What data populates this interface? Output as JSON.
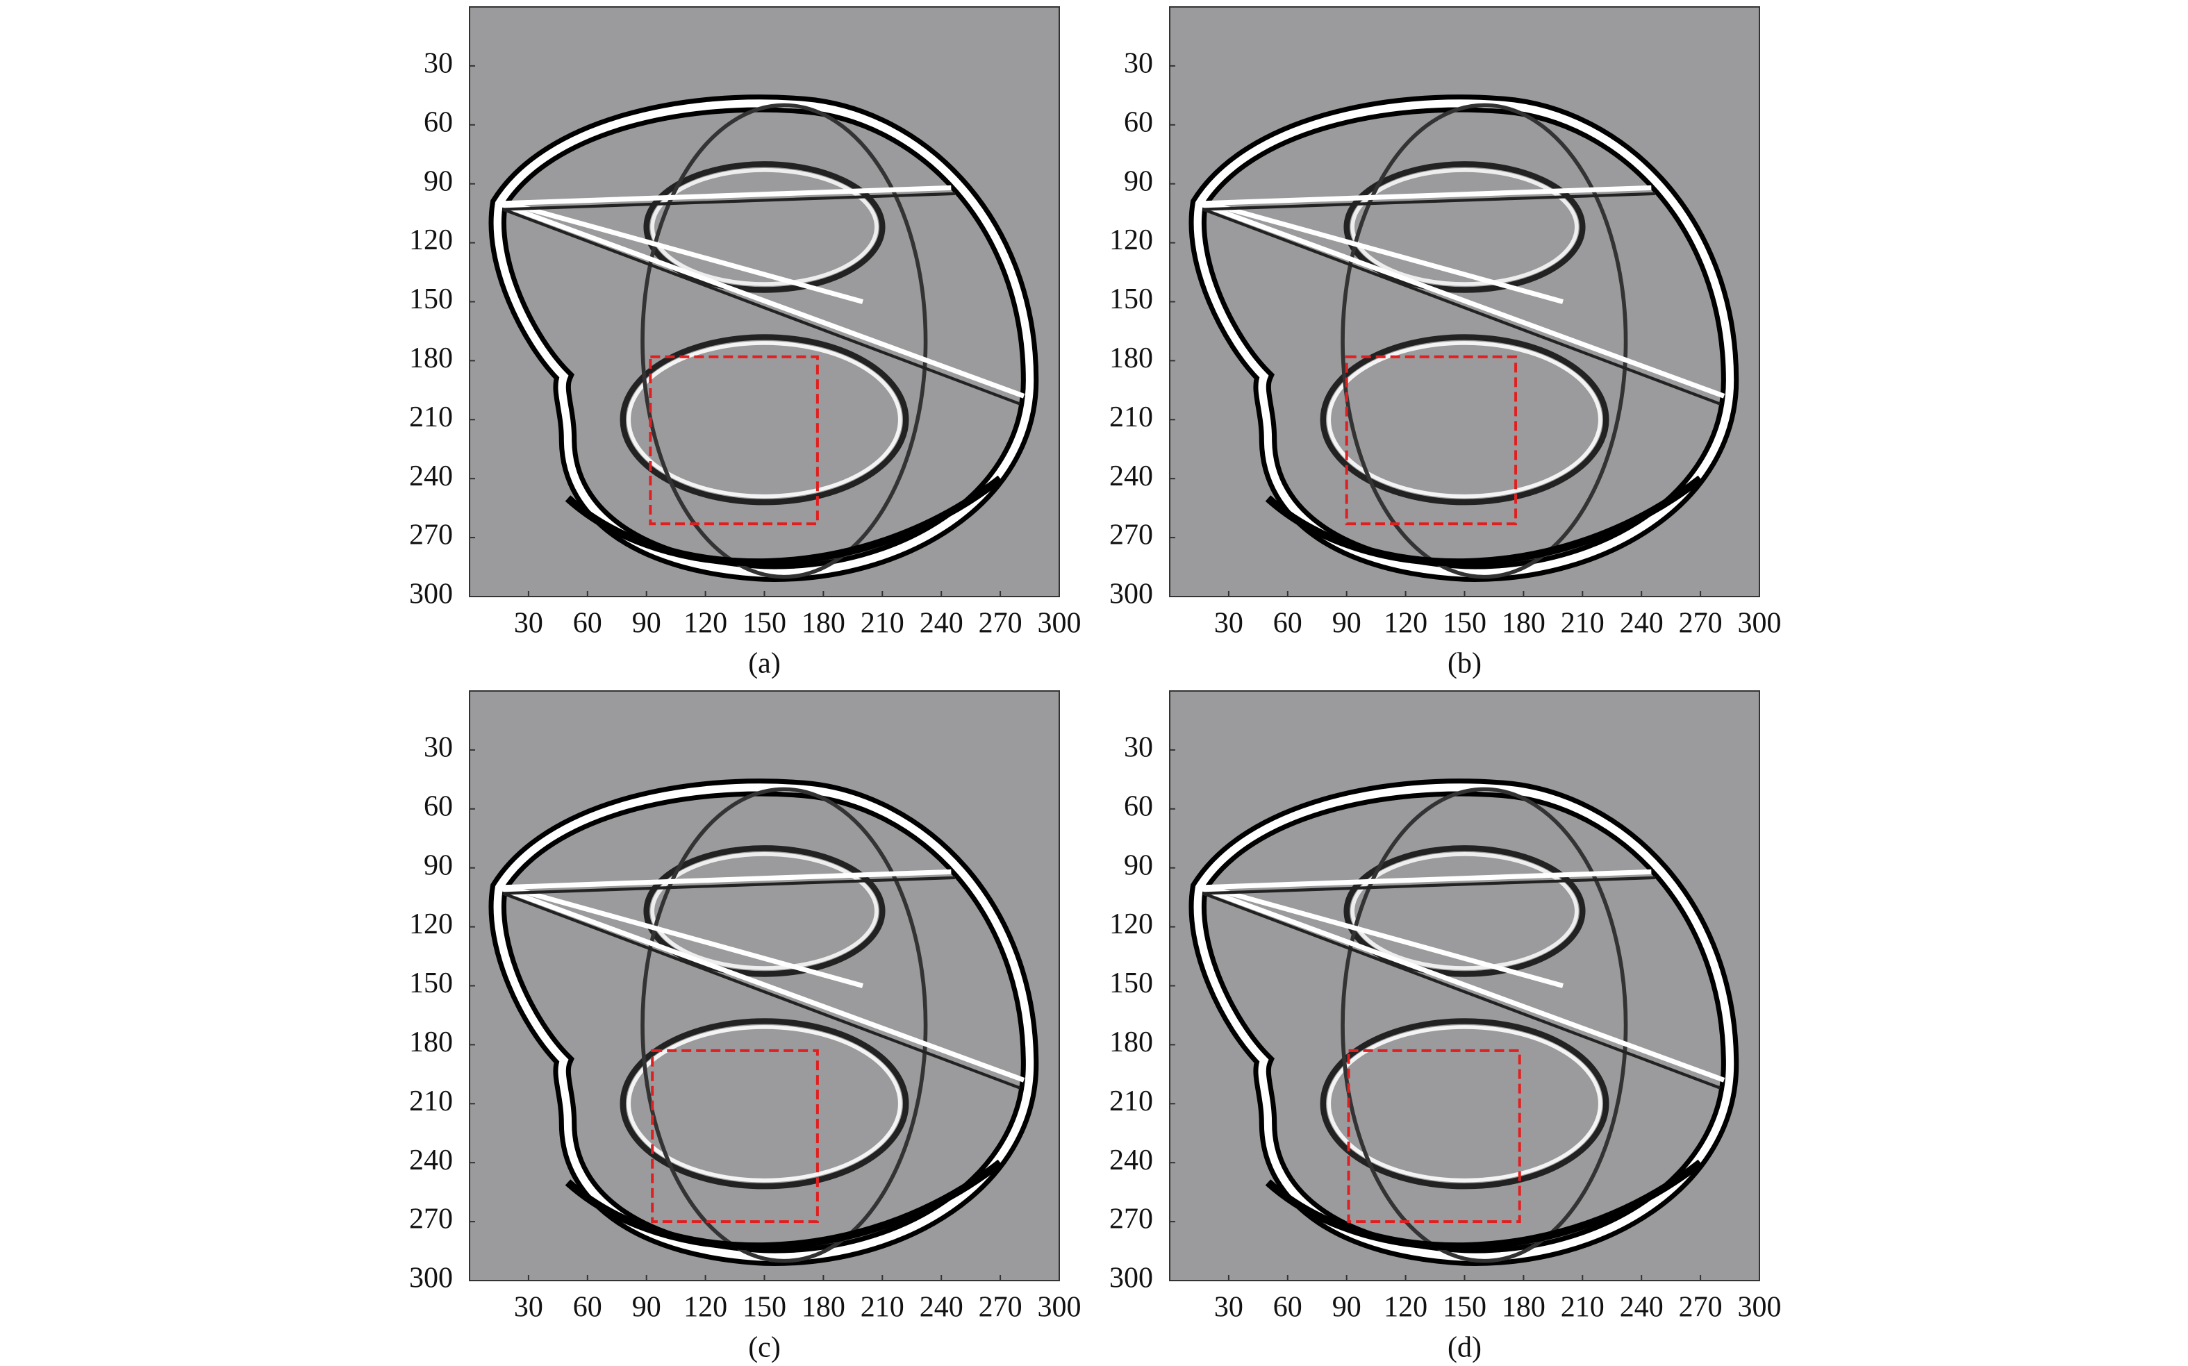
{
  "chart_data": [
    {
      "type": "image",
      "caption": "(a)",
      "xlim": [
        0,
        300
      ],
      "ylim": [
        0,
        300
      ],
      "y_reversed": true,
      "xticks": [
        30,
        60,
        90,
        120,
        150,
        180,
        210,
        240,
        270,
        300
      ],
      "yticks": [
        30,
        60,
        90,
        120,
        150,
        180,
        210,
        240,
        270,
        300
      ],
      "highlight_box": {
        "x": [
          92,
          177
        ],
        "y": [
          178,
          263
        ],
        "color": "#e02020"
      }
    },
    {
      "type": "image",
      "caption": "(b)",
      "xlim": [
        0,
        300
      ],
      "ylim": [
        0,
        300
      ],
      "y_reversed": true,
      "xticks": [
        30,
        60,
        90,
        120,
        150,
        180,
        210,
        240,
        270,
        300
      ],
      "yticks": [
        30,
        60,
        90,
        120,
        150,
        180,
        210,
        240,
        270,
        300
      ],
      "highlight_box": {
        "x": [
          90,
          176
        ],
        "y": [
          178,
          263
        ],
        "color": "#e02020"
      }
    },
    {
      "type": "image",
      "caption": "(c)",
      "xlim": [
        0,
        300
      ],
      "ylim": [
        0,
        300
      ],
      "y_reversed": true,
      "xticks": [
        30,
        60,
        90,
        120,
        150,
        180,
        210,
        240,
        270,
        300
      ],
      "yticks": [
        30,
        60,
        90,
        120,
        150,
        180,
        210,
        240,
        270,
        300
      ],
      "highlight_box": {
        "x": [
          93,
          177
        ],
        "y": [
          183,
          270
        ],
        "color": "#e02020"
      }
    },
    {
      "type": "image",
      "caption": "(d)",
      "xlim": [
        0,
        300
      ],
      "ylim": [
        0,
        300
      ],
      "y_reversed": true,
      "xticks": [
        30,
        60,
        90,
        120,
        150,
        180,
        210,
        240,
        270,
        300
      ],
      "yticks": [
        30,
        60,
        90,
        120,
        150,
        180,
        210,
        240,
        270,
        300
      ],
      "highlight_box": {
        "x": [
          91,
          178
        ],
        "y": [
          183,
          270
        ],
        "color": "#e02020"
      }
    }
  ]
}
